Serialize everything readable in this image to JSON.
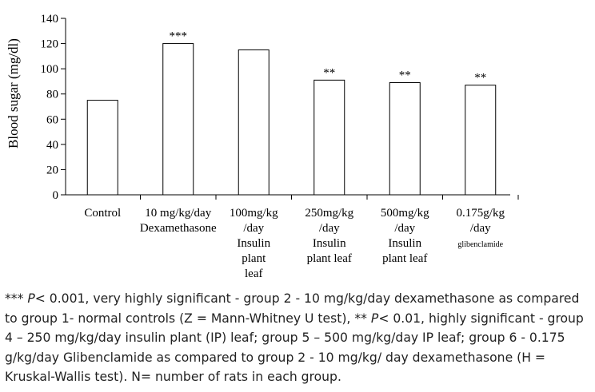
{
  "chart_data": {
    "type": "bar",
    "categories": [
      [
        "Control"
      ],
      [
        "10 mg/kg/day",
        "Dexamethasone"
      ],
      [
        "100mg/kg",
        "/day",
        "Insulin",
        "plant",
        "leaf"
      ],
      [
        "250mg/kg",
        "/day",
        "Insulin",
        "plant leaf"
      ],
      [
        "500mg/kg",
        "/day",
        "Insulin",
        "plant leaf"
      ],
      [
        "0.175g/kg",
        "/day",
        "glibenclamide"
      ]
    ],
    "values": [
      75,
      120,
      115,
      91,
      89,
      87
    ],
    "significance": [
      "",
      "***",
      "",
      "**",
      "**",
      "**"
    ],
    "ylabel": "Blood sugar (mg/dl)",
    "xlabel": "",
    "ylim": [
      0,
      140
    ],
    "yticks": [
      0,
      20,
      40,
      60,
      80,
      100,
      120,
      140
    ],
    "bar_fill": "#ffffff",
    "bar_stroke": "#000000",
    "grid": false,
    "legend": "none"
  },
  "caption": {
    "p1_stars": "*** ",
    "p1_symbol": "P",
    "p1_text": "< 0.001, very highly significant - group 2 - 10 mg/kg/day dexamethasone as compared to group 1- normal controls (Z = Mann-Whitney U test), ",
    "p2_stars": "** ",
    "p2_symbol": "P",
    "p2_text": "< 0.01, highly significant - group 4 – 250 mg/kg/day insulin plant (IP) leaf; group 5 – 500 mg/kg/day IP leaf; group 6 - 0.175 g/kg/day Glibenclamide as compared to group 2 - 10 mg/kg/ day dexamethasone (H = Kruskal-Wallis test). N= number of rats in each group."
  }
}
